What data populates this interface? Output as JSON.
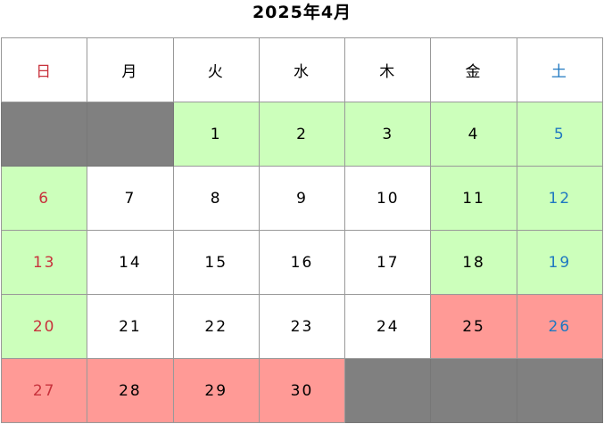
{
  "title": "2025年4月",
  "colors": {
    "available": "#ccffbb",
    "full": "#ff9a96",
    "empty": "#808080",
    "sunday": "#c8323c",
    "saturday": "#1f78c1"
  },
  "weekdays": [
    "日",
    "月",
    "火",
    "水",
    "木",
    "金",
    "土"
  ],
  "weeks": [
    [
      {
        "d": "",
        "s": "blank"
      },
      {
        "d": "",
        "s": "blank"
      },
      {
        "d": "1",
        "s": "green"
      },
      {
        "d": "2",
        "s": "green"
      },
      {
        "d": "3",
        "s": "green"
      },
      {
        "d": "4",
        "s": "green"
      },
      {
        "d": "5",
        "s": "green"
      }
    ],
    [
      {
        "d": "6",
        "s": "green"
      },
      {
        "d": "7",
        "s": "white"
      },
      {
        "d": "8",
        "s": "white"
      },
      {
        "d": "9",
        "s": "white"
      },
      {
        "d": "10",
        "s": "white"
      },
      {
        "d": "11",
        "s": "green"
      },
      {
        "d": "12",
        "s": "green"
      }
    ],
    [
      {
        "d": "13",
        "s": "green"
      },
      {
        "d": "14",
        "s": "white"
      },
      {
        "d": "15",
        "s": "white"
      },
      {
        "d": "16",
        "s": "white"
      },
      {
        "d": "17",
        "s": "white"
      },
      {
        "d": "18",
        "s": "green"
      },
      {
        "d": "19",
        "s": "green"
      }
    ],
    [
      {
        "d": "20",
        "s": "green"
      },
      {
        "d": "21",
        "s": "white"
      },
      {
        "d": "22",
        "s": "white"
      },
      {
        "d": "23",
        "s": "white"
      },
      {
        "d": "24",
        "s": "white"
      },
      {
        "d": "25",
        "s": "red"
      },
      {
        "d": "26",
        "s": "red"
      }
    ],
    [
      {
        "d": "27",
        "s": "red"
      },
      {
        "d": "28",
        "s": "red"
      },
      {
        "d": "29",
        "s": "red"
      },
      {
        "d": "30",
        "s": "red"
      },
      {
        "d": "",
        "s": "blank"
      },
      {
        "d": "",
        "s": "blank"
      },
      {
        "d": "",
        "s": "blank"
      }
    ]
  ]
}
